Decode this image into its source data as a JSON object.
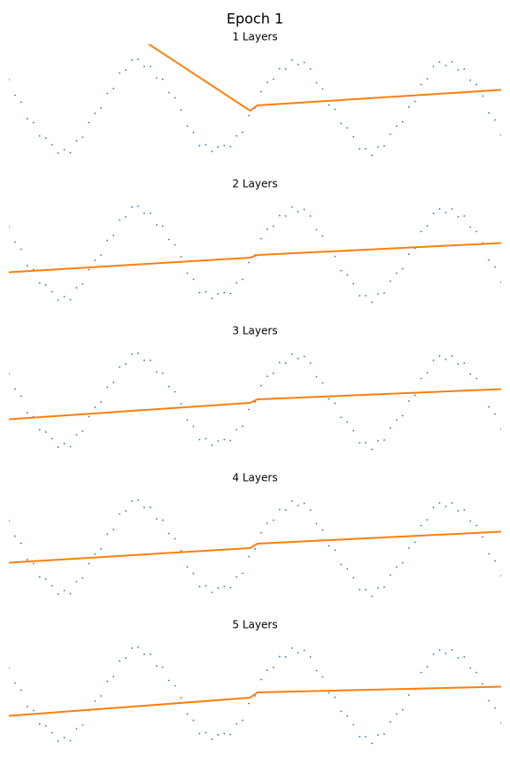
{
  "chart_data": {
    "type": "line",
    "title": "Epoch 1",
    "xlim": [
      -10,
      10
    ],
    "ylim": [
      -1.3,
      1.3
    ],
    "points": {
      "color": "#1f77b4",
      "x": [
        -10,
        -9.75,
        -9.5,
        -9.25,
        -9,
        -8.75,
        -8.5,
        -8.25,
        -8,
        -7.75,
        -7.5,
        -7.25,
        -7,
        -6.75,
        -6.5,
        -6.25,
        -6,
        -5.75,
        -5.5,
        -5.25,
        -5,
        -4.75,
        -4.5,
        -4.25,
        -4,
        -3.75,
        -3.5,
        -3.25,
        -3,
        -2.75,
        -2.5,
        -2.25,
        -2,
        -1.75,
        -1.5,
        -1.25,
        -1,
        -0.75,
        -0.5,
        -0.25,
        0,
        0.25,
        0.5,
        0.75,
        1,
        1.25,
        1.5,
        1.75,
        2,
        2.25,
        2.5,
        2.75,
        3,
        3.25,
        3.5,
        3.75,
        4,
        4.25,
        4.5,
        4.75,
        5,
        5.25,
        5.5,
        5.75,
        6,
        6.25,
        6.5,
        6.75,
        7,
        7.25,
        7.5,
        7.75,
        8,
        8.25,
        8.5,
        8.75,
        9,
        9.25,
        9.5,
        9.75,
        10
      ],
      "y": [
        0.62,
        0.27,
        0.11,
        -0.26,
        -0.35,
        -0.65,
        -0.7,
        -0.85,
        -1.04,
        -0.96,
        -1.03,
        -0.76,
        -0.68,
        -0.35,
        -0.14,
        -0.02,
        0.31,
        0.42,
        0.77,
        0.84,
        1.06,
        1.08,
        0.92,
        0.92,
        0.66,
        0.63,
        0.33,
        0.21,
        -0.06,
        -0.43,
        -0.57,
        -0.87,
        -0.85,
        -1.0,
        -0.9,
        -0.87,
        -0.89,
        -0.65,
        -0.57,
        -0.19,
        -0.02,
        0.35,
        0.56,
        0.63,
        0.87,
        0.86,
        1.06,
        0.96,
        1.01,
        0.86,
        0.55,
        0.41,
        0.05,
        -0.05,
        -0.37,
        -0.47,
        -0.67,
        -0.94,
        -0.94,
        -1.09,
        -0.9,
        -0.88,
        -0.61,
        -0.43,
        -0.33,
        0,
        0.13,
        0.51,
        0.64,
        0.92,
        1.02,
        0.94,
        1.02,
        0.84,
        0.86,
        0.61,
        0.51,
        0.25,
        -0.13,
        -0.29,
        -0.63
      ]
    },
    "panels": [
      {
        "title": "1 Layers",
        "line": {
          "color": "#ff7f0e",
          "x": [
            -10,
            -0.2,
            0.1,
            10
          ],
          "y": [
            3.5,
            -0.08,
            0.04,
            0.39
          ]
        }
      },
      {
        "title": "2 Layers",
        "line": {
          "color": "#ff7f0e",
          "x": [
            -10,
            -0.2,
            0.1,
            10
          ],
          "y": [
            -0.41,
            -0.08,
            -0.02,
            0.25
          ]
        }
      },
      {
        "title": "3 Layers",
        "line": {
          "color": "#ff7f0e",
          "x": [
            -10,
            -0.2,
            0.1,
            10
          ],
          "y": [
            -0.41,
            -0.04,
            0.04,
            0.27
          ]
        }
      },
      {
        "title": "4 Layers",
        "line": {
          "color": "#ff7f0e",
          "x": [
            -10,
            -0.2,
            0.1,
            10
          ],
          "y": [
            -0.33,
            0,
            0.1,
            0.37
          ]
        }
      },
      {
        "title": "5 Layers",
        "line": {
          "color": "#ff7f0e",
          "x": [
            -10,
            -0.2,
            0.1,
            10
          ],
          "y": [
            -0.47,
            -0.06,
            0.06,
            0.19
          ]
        }
      }
    ]
  }
}
